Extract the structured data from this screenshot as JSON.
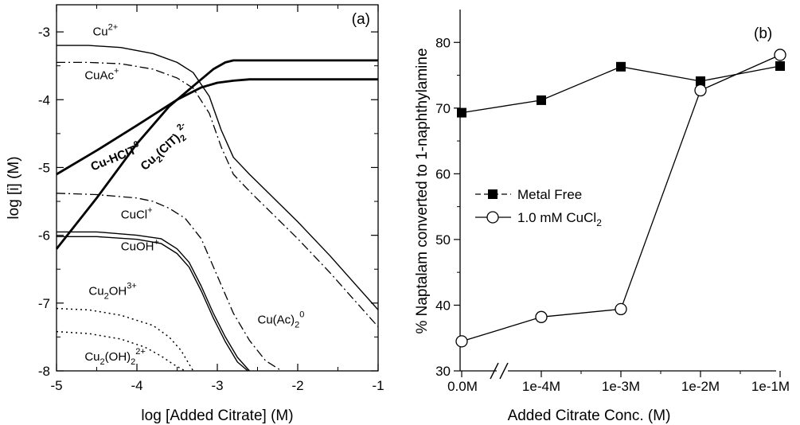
{
  "chart_data": [
    {
      "type": "line",
      "panel_label": "(a)",
      "xlabel": "log [Added Citrate] (M)",
      "ylabel": "log [i] (M)",
      "xlim": [
        -5,
        -1
      ],
      "ylim": [
        -8,
        -2.6
      ],
      "x_ticks": [
        -5,
        -4,
        -3,
        -2,
        -1
      ],
      "x_tick_labels": [
        "-5",
        "-4",
        "-3",
        "-2",
        "-1"
      ],
      "y_ticks": [
        -8,
        -7,
        -6,
        -5,
        -4,
        -3
      ],
      "y_tick_labels": [
        "-8",
        "-7",
        "-6",
        "-5",
        "-4",
        "-3"
      ],
      "series": [
        {
          "name": "Cu2+",
          "label_main": "Cu",
          "label_sup": "2+",
          "label_sub": "",
          "label_tail": "",
          "style": "solid",
          "label_anchor": [
            -4.55,
            -3.05
          ],
          "x": [
            -5,
            -4.6,
            -4.2,
            -3.8,
            -3.5,
            -3.3,
            -3.1,
            -2.95,
            -2.8,
            -2.6,
            -2.3,
            -2.0,
            -1.6,
            -1.3,
            -1.0
          ],
          "y": [
            -3.2,
            -3.2,
            -3.23,
            -3.32,
            -3.45,
            -3.6,
            -3.95,
            -4.45,
            -4.85,
            -5.1,
            -5.45,
            -5.8,
            -6.3,
            -6.7,
            -7.1
          ]
        },
        {
          "name": "CuAc+",
          "label_main": "CuAc",
          "label_sup": "+",
          "label_sub": "",
          "label_tail": "",
          "style": "dashdot",
          "label_anchor": [
            -4.65,
            -3.7
          ],
          "x": [
            -5,
            -4.6,
            -4.2,
            -3.8,
            -3.5,
            -3.3,
            -3.1,
            -2.95,
            -2.8,
            -2.6,
            -2.3,
            -2.0,
            -1.6,
            -1.3,
            -1.0
          ],
          "y": [
            -3.45,
            -3.45,
            -3.47,
            -3.55,
            -3.68,
            -3.83,
            -4.2,
            -4.7,
            -5.1,
            -5.35,
            -5.7,
            -6.05,
            -6.55,
            -6.95,
            -7.35
          ]
        },
        {
          "name": "Cu-HCIT0",
          "label_main": "Cu-HCIT",
          "label_sup": "0",
          "label_sub": "",
          "label_tail": "",
          "style": "bold",
          "label_anchor": [
            -4.55,
            -5.05
          ],
          "label_rotate": -22,
          "x": [
            -5,
            -4.5,
            -4.0,
            -3.5,
            -3.2,
            -3.0,
            -2.8,
            -2.6,
            -1.0
          ],
          "y": [
            -5.1,
            -4.75,
            -4.38,
            -4.0,
            -3.82,
            -3.75,
            -3.72,
            -3.7,
            -3.7
          ]
        },
        {
          "name": "Cu2(CIT)2 2-",
          "label_main": "Cu",
          "label_sup": "",
          "label_sub": "2",
          "label_tail": "(CIT)",
          "label_tail_sub": "2",
          "label_tail_sup": "2-",
          "style": "bold",
          "label_anchor": [
            -3.9,
            -5.05
          ],
          "label_rotate": -42,
          "x": [
            -5,
            -4.5,
            -4.0,
            -3.6,
            -3.3,
            -3.05,
            -2.9,
            -2.8,
            -2.6,
            -1.0
          ],
          "y": [
            -6.2,
            -5.45,
            -4.65,
            -4.1,
            -3.8,
            -3.55,
            -3.45,
            -3.42,
            -3.42,
            -3.42
          ]
        },
        {
          "name": "Cu(Ac)2 0",
          "label_main": "Cu(Ac)",
          "label_sup": "",
          "label_sub": "2",
          "label_tail": "",
          "label_tail_sup": "0",
          "style": "dashdot",
          "label_anchor": [
            -2.5,
            -7.3
          ],
          "x": [
            -5,
            -4.5,
            -4.0,
            -3.8,
            -3.6,
            -3.4,
            -3.2,
            -3.0,
            -2.8,
            -2.6,
            -2.4,
            -2.2
          ],
          "y": [
            -5.38,
            -5.4,
            -5.45,
            -5.5,
            -5.6,
            -5.75,
            -6.05,
            -6.6,
            -7.15,
            -7.55,
            -7.85,
            -8.0
          ]
        },
        {
          "name": "CuCl+",
          "label_main": "CuCl",
          "label_sup": "+",
          "label_sub": "",
          "label_tail": "",
          "style": "solid",
          "label_anchor": [
            -4.2,
            -5.75
          ],
          "x": [
            -5,
            -4.5,
            -4.0,
            -3.7,
            -3.5,
            -3.35,
            -3.2,
            -3.05,
            -2.9,
            -2.75,
            -2.6
          ],
          "y": [
            -5.95,
            -5.95,
            -6.0,
            -6.05,
            -6.2,
            -6.4,
            -6.75,
            -7.15,
            -7.5,
            -7.8,
            -8.0
          ]
        },
        {
          "name": "CuOH+",
          "label_main": "CuOH",
          "label_sup": "+",
          "label_sub": "",
          "label_tail": "",
          "style": "solid",
          "label_anchor": [
            -4.2,
            -6.22
          ],
          "x": [
            -5,
            -4.5,
            -4.0,
            -3.7,
            -3.5,
            -3.35,
            -3.2,
            -3.05,
            -2.9,
            -2.75,
            -2.62
          ],
          "y": [
            -6.02,
            -6.02,
            -6.06,
            -6.12,
            -6.27,
            -6.47,
            -6.82,
            -7.22,
            -7.57,
            -7.87,
            -8.0
          ]
        },
        {
          "name": "Cu2OH3+",
          "label_main": "Cu",
          "label_sup": "",
          "label_sub": "2",
          "label_tail": "OH",
          "label_tail_sup": "3+",
          "style": "dotted",
          "label_anchor": [
            -4.6,
            -6.88
          ],
          "x": [
            -5,
            -4.6,
            -4.2,
            -3.8,
            -3.6,
            -3.45,
            -3.35,
            -3.3
          ],
          "y": [
            -7.08,
            -7.1,
            -7.18,
            -7.33,
            -7.5,
            -7.7,
            -7.9,
            -8.0
          ]
        },
        {
          "name": "Cu2(OH)2 2+",
          "label_main": "Cu",
          "label_sup": "",
          "label_sub": "2",
          "label_tail": "(OH)",
          "label_tail_sub": "2",
          "label_tail_sup": "2+",
          "style": "dotted",
          "label_anchor": [
            -4.65,
            -7.85
          ],
          "x": [
            -5,
            -4.6,
            -4.2,
            -3.9,
            -3.7,
            -3.55,
            -3.45,
            -3.4
          ],
          "y": [
            -7.42,
            -7.45,
            -7.53,
            -7.65,
            -7.78,
            -7.9,
            -7.97,
            -8.0
          ]
        }
      ]
    },
    {
      "type": "line",
      "panel_label": "(b)",
      "xlabel": "Added Citrate Conc. (M)",
      "ylabel": "% Naptalam converted to 1-naphthylamine",
      "categories": [
        "0.0M",
        "1e-4M",
        "1e-3M",
        "1e-2M",
        "1e-1M"
      ],
      "ylim": [
        30,
        85
      ],
      "y_ticks": [
        30,
        40,
        50,
        60,
        70,
        80
      ],
      "y_tick_labels": [
        "30",
        "40",
        "50",
        "60",
        "70",
        "80"
      ],
      "axis_break": "//",
      "legend_position": "center-left",
      "series": [
        {
          "name": "Metal Free",
          "marker": "filled-square",
          "values": [
            69.3,
            71.2,
            76.3,
            74.1,
            76.4
          ]
        },
        {
          "name": "1.0 mM CuCl",
          "name_sub": "2",
          "marker": "open-circle",
          "values": [
            34.5,
            38.2,
            39.4,
            72.7,
            78.1
          ]
        }
      ]
    }
  ]
}
